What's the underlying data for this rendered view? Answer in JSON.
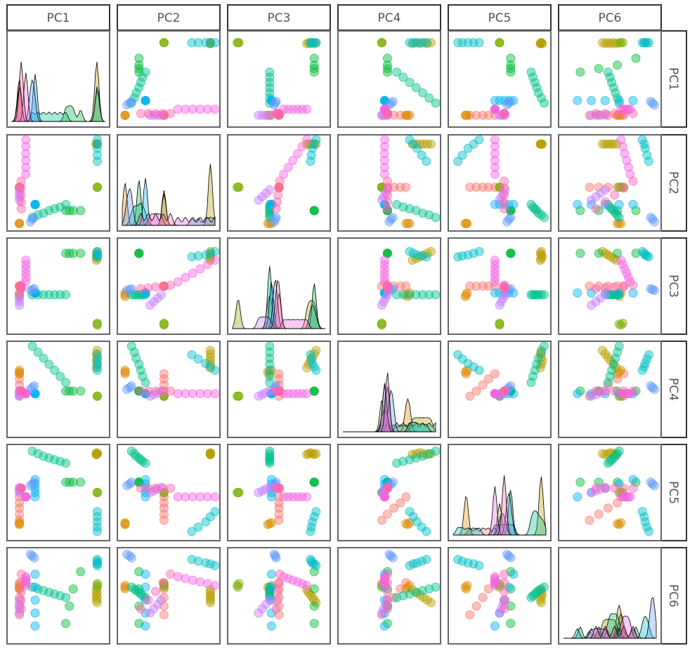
{
  "chart_data": {
    "type": "scatter",
    "layout": "pairs-matrix",
    "variables": [
      "PC1",
      "PC2",
      "PC3",
      "PC4",
      "PC5",
      "PC6"
    ],
    "diagonal": "density",
    "off_diagonal": "scatter",
    "title": "",
    "legend": "none",
    "grid": false,
    "axis_range": [
      0,
      100
    ],
    "groups": [
      {
        "color": "#F8766D",
        "cluster": [
          [
            8,
            45,
            50,
            42,
            18,
            28
          ],
          [
            8,
            45,
            50,
            48,
            25,
            38
          ],
          [
            8,
            45,
            50,
            55,
            32,
            48
          ],
          [
            8,
            45,
            50,
            62,
            38,
            58
          ],
          [
            8,
            45,
            50,
            68,
            45,
            65
          ]
        ]
      },
      {
        "color": "#DE8C00",
        "cluster": [
          [
            8,
            3,
            40,
            68,
            14,
            58
          ],
          [
            8,
            3,
            38,
            70,
            13,
            60
          ],
          [
            8,
            3,
            42,
            72,
            15,
            62
          ]
        ]
      },
      {
        "color": "#B79F00",
        "cluster": [
          [
            92,
            95,
            90,
            95,
            95,
            42
          ],
          [
            91,
            95,
            88,
            91,
            94,
            45
          ],
          [
            92,
            95,
            86,
            87,
            95,
            48
          ],
          [
            91,
            95,
            84,
            83,
            96,
            51
          ],
          [
            92,
            95,
            82,
            79,
            95,
            54
          ],
          [
            91,
            95,
            80,
            75,
            94,
            57
          ]
        ]
      },
      {
        "color": "#7CAE00",
        "cluster": [
          [
            92,
            45,
            6,
            42,
            50,
            60
          ],
          [
            92,
            45,
            5,
            42,
            50,
            62
          ],
          [
            92,
            45,
            7,
            42,
            50,
            64
          ]
        ]
      },
      {
        "color": "#00BA38",
        "cluster": [
          [
            58,
            18,
            88,
            48,
            62,
            18
          ],
          [
            62,
            18,
            88,
            48,
            62,
            38
          ],
          [
            66,
            18,
            88,
            48,
            62,
            58
          ],
          [
            74,
            18,
            88,
            48,
            62,
            78
          ]
        ]
      },
      {
        "color": "#00C08B",
        "cluster": [
          [
            22,
            10,
            40,
            100,
            98,
            60
          ],
          [
            28,
            13,
            40,
            93,
            95,
            58
          ],
          [
            34,
            15,
            40,
            86,
            92,
            56
          ],
          [
            40,
            18,
            40,
            79,
            90,
            54
          ],
          [
            46,
            20,
            40,
            72,
            88,
            52
          ],
          [
            52,
            22,
            40,
            65,
            86,
            50
          ],
          [
            58,
            25,
            40,
            58,
            84,
            48
          ]
        ]
      },
      {
        "color": "#00BFC4",
        "cluster": [
          [
            92,
            100,
            90,
            72,
            28,
            85
          ],
          [
            92,
            95,
            88,
            76,
            22,
            87
          ],
          [
            92,
            90,
            86,
            80,
            16,
            88
          ],
          [
            92,
            82,
            85,
            85,
            10,
            90
          ],
          [
            92,
            75,
            84,
            90,
            5,
            92
          ]
        ]
      },
      {
        "color": "#00B4F0",
        "cluster": [
          [
            25,
            25,
            42,
            45,
            45,
            15
          ],
          [
            25,
            25,
            42,
            45,
            50,
            30
          ],
          [
            25,
            25,
            42,
            45,
            55,
            45
          ],
          [
            25,
            25,
            42,
            45,
            60,
            60
          ],
          [
            25,
            25,
            42,
            45,
            65,
            75
          ]
        ]
      },
      {
        "color": "#619CFF",
        "cluster": [
          [
            20,
            5,
            45,
            50,
            58,
            98
          ],
          [
            22,
            8,
            46,
            52,
            60,
            96
          ],
          [
            24,
            10,
            47,
            54,
            62,
            94
          ]
        ]
      },
      {
        "color": "#C77CFF",
        "cluster": [
          [
            8,
            30,
            28,
            42,
            50,
            30
          ],
          [
            8,
            34,
            32,
            44,
            52,
            35
          ],
          [
            8,
            38,
            36,
            46,
            54,
            40
          ],
          [
            8,
            42,
            40,
            48,
            56,
            45
          ]
        ]
      },
      {
        "color": "#F564E3",
        "cluster": [
          [
            15,
            60,
            55,
            45,
            45,
            72
          ],
          [
            15,
            68,
            60,
            45,
            45,
            70
          ],
          [
            15,
            76,
            65,
            45,
            45,
            68
          ],
          [
            15,
            84,
            70,
            45,
            45,
            66
          ],
          [
            15,
            92,
            75,
            45,
            45,
            64
          ],
          [
            15,
            100,
            80,
            45,
            45,
            62
          ]
        ]
      },
      {
        "color": "#FF64B0",
        "cluster": [
          [
            10,
            20,
            47,
            48,
            55,
            35
          ],
          [
            10,
            28,
            48,
            48,
            55,
            45
          ],
          [
            10,
            36,
            49,
            48,
            55,
            55
          ],
          [
            10,
            44,
            50,
            48,
            55,
            65
          ],
          [
            10,
            52,
            51,
            48,
            55,
            75
          ]
        ]
      }
    ]
  }
}
